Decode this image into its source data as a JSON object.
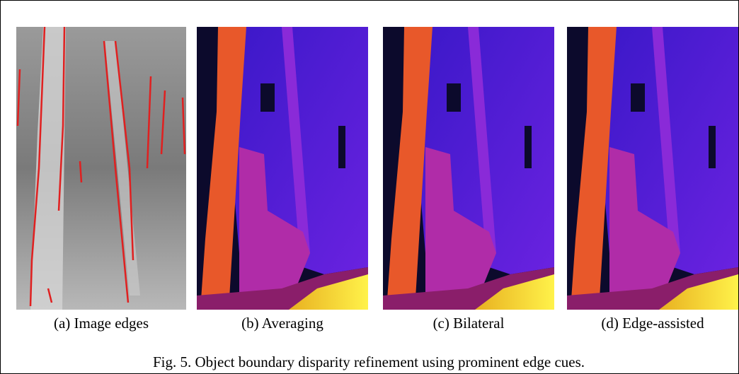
{
  "panels": [
    {
      "label": "(a) Image edges"
    },
    {
      "label": "(b) Averaging"
    },
    {
      "label": "(c) Bilateral"
    },
    {
      "label": "(d) Edge-assisted"
    }
  ],
  "caption": "Fig. 5. Object boundary disparity refinement using prominent edge cues."
}
